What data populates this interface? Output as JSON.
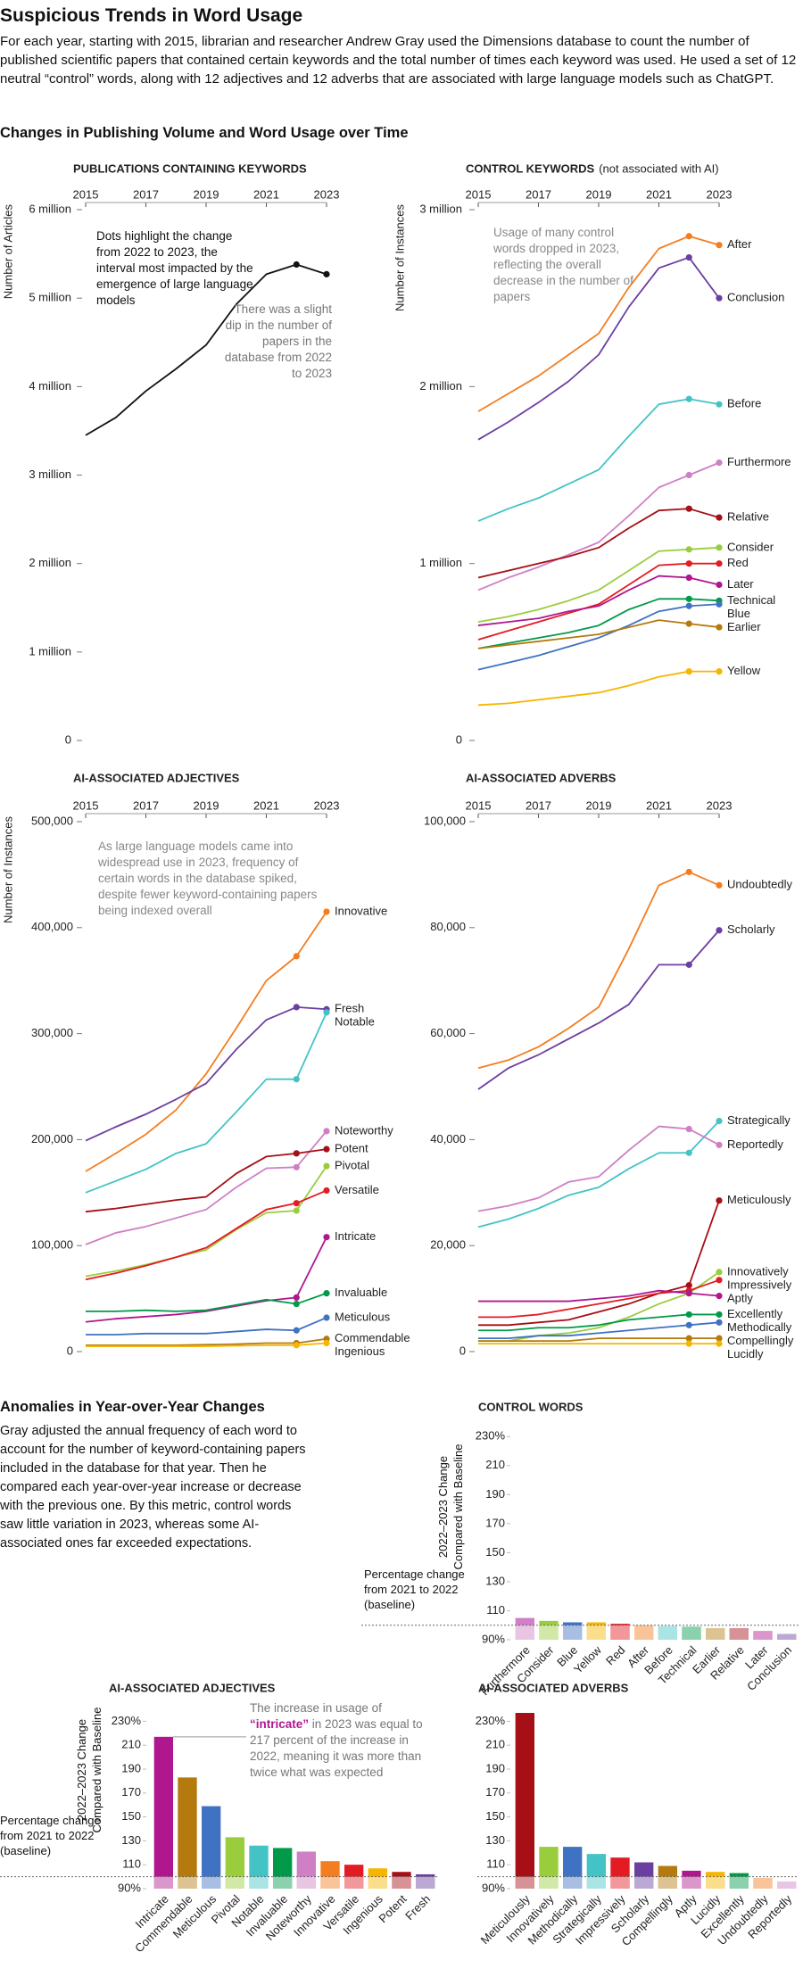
{
  "header": {
    "title": "Suspicious Trends in Word Usage",
    "intro": "For each year, starting with 2015, librarian and researcher Andrew Gray used the Dimensions database to count the number of published scientific papers that contained certain keywords and the total number of times each keyword was used. He used a set of 12 neutral “control” words, along with 12 adjectives and 12 adverbs that are associated with large language models such as ChatGPT."
  },
  "section_1": {
    "title": "Changes in Publishing Volume and Word Usage over Time"
  },
  "section_2": {
    "title": "Anomalies in Year-over-Year Changes",
    "text": "Gray adjusted the annual frequency of each word to account for the number of keyword-containing papers included in the database for that year. Then he compared each year-over-year increase or decrease with the previous one. By this metric, control words saw little variation in 2023, whereas some AI-associated ones far exceeded expectations."
  },
  "chart_data": [
    {
      "type": "line",
      "title": "PUBLICATIONS CONTAINING KEYWORDS",
      "y_label": "Number of Articles",
      "x": [
        2015,
        2016,
        2017,
        2018,
        2019,
        2020,
        2021,
        2022,
        2023
      ],
      "xlim": [
        2015,
        2023
      ],
      "xticks": [
        2015,
        2017,
        2019,
        2021,
        2023
      ],
      "ylim": [
        0,
        6000000
      ],
      "yticks": [
        0,
        {
          "value": 1000000,
          "label": "1 million"
        },
        {
          "value": 2000000,
          "label": "2 million"
        },
        {
          "value": 3000000,
          "label": "3 million"
        },
        {
          "value": 4000000,
          "label": "4 million"
        },
        {
          "value": 5000000,
          "label": "5 million"
        },
        {
          "value": 6000000,
          "label": "6 million"
        }
      ],
      "values": [
        3450000,
        3650000,
        3950000,
        4200000,
        4470000,
        4930000,
        5270000,
        5380000,
        5270000
      ],
      "color": "#111111",
      "annotations": [
        "Dots highlight the change from 2022 to 2023, the interval most impacted by the emergence of large language models",
        "There was a slight dip in the number of papers in the database from 2022 to 2023"
      ]
    },
    {
      "type": "line",
      "title": "CONTROL KEYWORDS",
      "subtitle": "(not associated with AI)",
      "y_label": "Number of Instances",
      "x": [
        2015,
        2016,
        2017,
        2018,
        2019,
        2020,
        2021,
        2022,
        2023
      ],
      "xlim": [
        2015,
        2023
      ],
      "xticks": [
        2015,
        2017,
        2019,
        2021,
        2023
      ],
      "ylim": [
        0,
        3000000
      ],
      "yticks": [
        0,
        {
          "value": 1000000,
          "label": "1 million"
        },
        {
          "value": 2000000,
          "label": "2 million"
        },
        {
          "value": 3000000,
          "label": "3 million"
        }
      ],
      "series": [
        {
          "name": "After",
          "color": "#f47d20",
          "values": [
            1860000,
            1960000,
            2060000,
            2180000,
            2300000,
            2560000,
            2780000,
            2850000,
            2800000
          ]
        },
        {
          "name": "Conclusion",
          "color": "#6b3fa0",
          "values": [
            1700000,
            1800000,
            1910000,
            2030000,
            2180000,
            2450000,
            2670000,
            2730000,
            2500000
          ]
        },
        {
          "name": "Before",
          "color": "#43c3c6",
          "values": [
            1240000,
            1310000,
            1370000,
            1450000,
            1530000,
            1720000,
            1900000,
            1930000,
            1900000
          ]
        },
        {
          "name": "Furthermore",
          "color": "#cf7fc4",
          "values": [
            850000,
            920000,
            980000,
            1050000,
            1120000,
            1270000,
            1430000,
            1500000,
            1570000
          ]
        },
        {
          "name": "Relative",
          "color": "#a50f15",
          "values": [
            920000,
            960000,
            1000000,
            1040000,
            1090000,
            1200000,
            1300000,
            1310000,
            1260000
          ]
        },
        {
          "name": "Consider",
          "color": "#9acd3c",
          "values": [
            670000,
            700000,
            740000,
            790000,
            850000,
            960000,
            1070000,
            1080000,
            1090000
          ]
        },
        {
          "name": "Red",
          "color": "#e31b23",
          "values": [
            570000,
            620000,
            670000,
            720000,
            770000,
            880000,
            990000,
            1000000,
            1000000
          ]
        },
        {
          "name": "Later",
          "color": "#b0178f",
          "values": [
            650000,
            670000,
            690000,
            730000,
            760000,
            850000,
            930000,
            920000,
            880000
          ]
        },
        {
          "name": "Technical",
          "color": "#009a49",
          "values": [
            520000,
            550000,
            580000,
            610000,
            650000,
            740000,
            800000,
            800000,
            790000
          ]
        },
        {
          "name": "Blue",
          "color": "#3f72c2",
          "values": [
            400000,
            440000,
            480000,
            530000,
            580000,
            650000,
            730000,
            760000,
            770000
          ]
        },
        {
          "name": "Earlier",
          "color": "#b47a0e",
          "values": [
            520000,
            540000,
            560000,
            580000,
            600000,
            640000,
            680000,
            660000,
            640000
          ]
        },
        {
          "name": "Yellow",
          "color": "#f7b500",
          "values": [
            200000,
            210000,
            230000,
            250000,
            270000,
            310000,
            360000,
            390000,
            390000
          ]
        }
      ],
      "annotations": [
        "Usage of many control words dropped in 2023, reflecting the overall decrease in the number of papers"
      ]
    },
    {
      "type": "line",
      "title": "AI-ASSOCIATED ADJECTIVES",
      "y_label": "Number of Instances",
      "x": [
        2015,
        2016,
        2017,
        2018,
        2019,
        2020,
        2021,
        2022,
        2023
      ],
      "xlim": [
        2015,
        2023
      ],
      "xticks": [
        2015,
        2017,
        2019,
        2021,
        2023
      ],
      "ylim": [
        0,
        500000
      ],
      "yticks": [
        0,
        {
          "value": 100000,
          "label": "100,000"
        },
        {
          "value": 200000,
          "label": "200,000"
        },
        {
          "value": 300000,
          "label": "300,000"
        },
        {
          "value": 400000,
          "label": "400,000"
        },
        {
          "value": 500000,
          "label": "500,000"
        }
      ],
      "series": [
        {
          "name": "Innovative",
          "color": "#f47d20",
          "values": [
            170000,
            187000,
            205000,
            228000,
            262000,
            305000,
            350000,
            373000,
            415000
          ]
        },
        {
          "name": "Fresh",
          "color": "#6b3fa0",
          "values": [
            199000,
            212000,
            224000,
            238000,
            253000,
            285000,
            313000,
            325000,
            323000
          ]
        },
        {
          "name": "Notable",
          "color": "#43c3c6",
          "values": [
            150000,
            161000,
            172000,
            187000,
            196000,
            226000,
            257000,
            257000,
            320000
          ]
        },
        {
          "name": "Noteworthy",
          "color": "#cf7fc4",
          "values": [
            101000,
            112000,
            118000,
            126000,
            134000,
            155000,
            173000,
            174000,
            208000
          ]
        },
        {
          "name": "Potent",
          "color": "#a50f15",
          "values": [
            132000,
            135000,
            139000,
            143000,
            146000,
            168000,
            184000,
            187000,
            191000
          ]
        },
        {
          "name": "Pivotal",
          "color": "#9acd3c",
          "values": [
            71000,
            76000,
            82000,
            89000,
            96000,
            115000,
            131000,
            133000,
            175000
          ]
        },
        {
          "name": "Versatile",
          "color": "#e31b23",
          "values": [
            68000,
            74000,
            81000,
            89000,
            98000,
            116000,
            134000,
            140000,
            152000
          ]
        },
        {
          "name": "Intricate",
          "color": "#b0178f",
          "values": [
            28000,
            31000,
            33000,
            35000,
            38000,
            43000,
            48000,
            51000,
            108000
          ]
        },
        {
          "name": "Invaluable",
          "color": "#009a49",
          "values": [
            38000,
            38000,
            39000,
            38000,
            39000,
            44000,
            49000,
            45000,
            55000
          ]
        },
        {
          "name": "Meticulous",
          "color": "#3f72c2",
          "values": [
            16000,
            16000,
            17000,
            17000,
            17000,
            19000,
            21000,
            20000,
            32000
          ]
        },
        {
          "name": "Commendable",
          "color": "#b47a0e",
          "values": [
            6000,
            6000,
            6000,
            6000,
            6500,
            7000,
            8000,
            8000,
            12000
          ]
        },
        {
          "name": "Ingenious",
          "color": "#f7b500",
          "values": [
            5000,
            5000,
            5000,
            5000,
            5000,
            5500,
            6000,
            6000,
            8000
          ]
        }
      ],
      "annotations": [
        "As large language models came into widespread use in 2023, frequency of certain words in the database spiked, despite fewer keyword-containing papers being indexed overall"
      ]
    },
    {
      "type": "line",
      "title": "AI-ASSOCIATED ADVERBS",
      "x": [
        2015,
        2016,
        2017,
        2018,
        2019,
        2020,
        2021,
        2022,
        2023
      ],
      "xlim": [
        2015,
        2023
      ],
      "xticks": [
        2015,
        2017,
        2019,
        2021,
        2023
      ],
      "ylim": [
        0,
        100000
      ],
      "yticks": [
        0,
        {
          "value": 20000,
          "label": "20,000"
        },
        {
          "value": 40000,
          "label": "40,000"
        },
        {
          "value": 60000,
          "label": "60,000"
        },
        {
          "value": 80000,
          "label": "80,000"
        },
        {
          "value": 100000,
          "label": "100,000"
        }
      ],
      "series": [
        {
          "name": "Undoubtedly",
          "color": "#f47d20",
          "values": [
            53500,
            55000,
            57500,
            61000,
            65000,
            76000,
            88000,
            90500,
            88000
          ]
        },
        {
          "name": "Scholarly",
          "color": "#6b3fa0",
          "values": [
            49500,
            53500,
            56000,
            59000,
            62000,
            65500,
            73000,
            73000,
            79500
          ]
        },
        {
          "name": "Strategically",
          "color": "#43c3c6",
          "values": [
            23500,
            25000,
            27000,
            29500,
            31000,
            34500,
            37500,
            37500,
            43500
          ]
        },
        {
          "name": "Reportedly",
          "color": "#cf7fc4",
          "values": [
            26500,
            27500,
            29000,
            32000,
            33000,
            38000,
            42500,
            42000,
            39000
          ]
        },
        {
          "name": "Meticulously",
          "color": "#a50f15",
          "values": [
            5000,
            5000,
            5500,
            6000,
            7500,
            9000,
            11000,
            12500,
            28500
          ]
        },
        {
          "name": "Innovatively",
          "color": "#9acd3c",
          "values": [
            2000,
            2000,
            3000,
            3500,
            4500,
            6500,
            9000,
            11000,
            15000
          ]
        },
        {
          "name": "Impressively",
          "color": "#e31b23",
          "values": [
            6500,
            6500,
            7000,
            8000,
            9000,
            10000,
            11000,
            11500,
            13500
          ]
        },
        {
          "name": "Aptly",
          "color": "#b0178f",
          "values": [
            9500,
            9500,
            9500,
            9500,
            10000,
            10500,
            11500,
            11000,
            10500
          ]
        },
        {
          "name": "Excellently",
          "color": "#009a49",
          "values": [
            4000,
            4000,
            4500,
            4500,
            5000,
            6000,
            6500,
            7000,
            7000
          ]
        },
        {
          "name": "Methodically",
          "color": "#3f72c2",
          "values": [
            2500,
            2500,
            3000,
            3000,
            3500,
            4000,
            4500,
            5000,
            5500
          ]
        },
        {
          "name": "Compellingly",
          "color": "#b47a0e",
          "values": [
            2000,
            2000,
            2000,
            2000,
            2500,
            2500,
            2500,
            2500,
            2500
          ]
        },
        {
          "name": "Lucidly",
          "color": "#f7b500",
          "values": [
            1500,
            1500,
            1500,
            1500,
            1500,
            1500,
            1500,
            1500,
            1500
          ]
        }
      ]
    },
    {
      "type": "bar",
      "title": "CONTROL WORDS",
      "y_label": "2022–2023 Change Compared with Baseline",
      "categories": [
        "Furthermore",
        "Consider",
        "Blue",
        "Yellow",
        "Red",
        "After",
        "Before",
        "Technical",
        "Earlier",
        "Relative",
        "Later",
        "Conclusion"
      ],
      "values": [
        105,
        103,
        102,
        102,
        101,
        100,
        99.5,
        99,
        98,
        98,
        96,
        94
      ],
      "colors": [
        "#cf7fc4",
        "#9acd3c",
        "#3f72c2",
        "#f7b500",
        "#e31b23",
        "#f47d20",
        "#43c3c6",
        "#009a49",
        "#b47a0e",
        "#a50f15",
        "#b0178f",
        "#6b3fa0"
      ],
      "ylim": [
        90,
        240
      ],
      "yticks": [
        {
          "value": 90,
          "label": "90%"
        },
        110,
        130,
        150,
        170,
        190,
        210,
        {
          "value": 230,
          "label": "230%"
        }
      ],
      "baseline": {
        "value": 100,
        "label": "Percentage change from 2021 to 2022 (baseline)"
      }
    },
    {
      "type": "bar",
      "title": "AI-ASSOCIATED ADJECTIVES",
      "y_label": "2022–2023 Change Compared with Baseline",
      "categories": [
        "Intricate",
        "Commendable",
        "Meticulous",
        "Pivotal",
        "Notable",
        "Invaluable",
        "Noteworthy",
        "Innovative",
        "Versatile",
        "Ingenious",
        "Potent",
        "Fresh"
      ],
      "values": [
        217,
        183,
        159,
        133,
        126,
        124,
        121,
        113,
        110,
        107,
        104,
        102
      ],
      "colors": [
        "#b0178f",
        "#b47a0e",
        "#3f72c2",
        "#9acd3c",
        "#43c3c6",
        "#009a49",
        "#cf7fc4",
        "#f47d20",
        "#e31b23",
        "#f7b500",
        "#a50f15",
        "#6b3fa0"
      ],
      "ylim": [
        90,
        240
      ],
      "yticks": [
        {
          "value": 90,
          "label": "90%"
        },
        110,
        130,
        150,
        170,
        190,
        210,
        {
          "value": 230,
          "label": "230%"
        }
      ],
      "baseline": {
        "value": 100,
        "label": "Percentage change from 2021 to 2022 (baseline)"
      },
      "annotation": [
        "The increase in usage of",
        "“intricate”",
        "in 2023 was equal to 217 percent of the increase in 2022, meaning it was more than twice what was expected"
      ]
    },
    {
      "type": "bar",
      "title": "AI-ASSOCIATED ADVERBS",
      "categories": [
        "Meticulously",
        "Innovatively",
        "Methodically",
        "Strategically",
        "Impressively",
        "Scholarly",
        "Compellingly",
        "Aptly",
        "Lucidly",
        "Excellently",
        "Undoubtedly",
        "Reportedly"
      ],
      "values": [
        237,
        125,
        125,
        119,
        116,
        112,
        109,
        105,
        104,
        103,
        99,
        96
      ],
      "colors": [
        "#a50f15",
        "#9acd3c",
        "#3f72c2",
        "#43c3c6",
        "#e31b23",
        "#6b3fa0",
        "#b47a0e",
        "#b0178f",
        "#f7b500",
        "#009a49",
        "#f47d20",
        "#cf7fc4"
      ],
      "ylim": [
        90,
        240
      ],
      "yticks": [
        {
          "value": 90,
          "label": "90%"
        },
        110,
        130,
        150,
        170,
        190,
        210,
        {
          "value": 230,
          "label": "230%"
        }
      ],
      "baseline": {
        "value": 100
      }
    }
  ]
}
